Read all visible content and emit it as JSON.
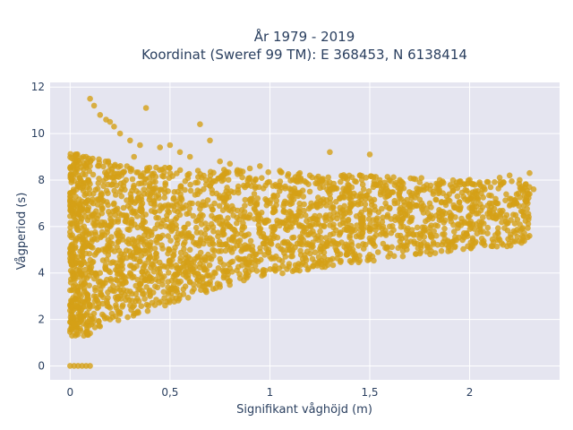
{
  "chart_data": {
    "type": "scatter",
    "title_line1": "År 1979 - 2019",
    "title_line2": "Koordinat (Sweref 99 TM): E 368453, N 6138414",
    "xlabel": "Signifikant våghöjd (m)",
    "ylabel": "Vågperiod (s)",
    "xlim": [
      -0.1,
      2.45
    ],
    "ylim": [
      -0.6,
      12.2
    ],
    "x_ticks": [
      0,
      0.5,
      1,
      1.5,
      2
    ],
    "x_tick_labels": [
      "0",
      "0,5",
      "1",
      "1,5",
      "2"
    ],
    "y_ticks": [
      0,
      2,
      4,
      6,
      8,
      10,
      12
    ],
    "y_tick_labels": [
      "0",
      "2",
      "4",
      "6",
      "8",
      "10",
      "12"
    ],
    "marker_color": "#d4a017",
    "plot_bg": "#e5e5f0",
    "grid": true,
    "points": [
      [
        0.0,
        0.0
      ],
      [
        0.02,
        0.0
      ],
      [
        0.04,
        0.0
      ],
      [
        0.06,
        0.0
      ],
      [
        0.08,
        0.0
      ],
      [
        0.1,
        0.0
      ],
      [
        0.01,
        1.3
      ],
      [
        0.02,
        1.8
      ],
      [
        0.03,
        2.6
      ],
      [
        0.04,
        3.4
      ],
      [
        0.05,
        4.2
      ],
      [
        0.06,
        5.0
      ],
      [
        0.07,
        6.0
      ],
      [
        0.08,
        7.0
      ],
      [
        0.09,
        8.0
      ],
      [
        0.1,
        8.6
      ],
      [
        0.1,
        1.4
      ],
      [
        0.15,
        1.7
      ],
      [
        0.2,
        2.0
      ],
      [
        0.25,
        2.3
      ],
      [
        0.3,
        2.6
      ],
      [
        0.4,
        3.0
      ],
      [
        0.5,
        3.3
      ],
      [
        0.6,
        3.6
      ],
      [
        0.7,
        3.9
      ],
      [
        0.8,
        4.2
      ],
      [
        0.9,
        4.5
      ],
      [
        1.0,
        4.7
      ],
      [
        1.1,
        5.0
      ],
      [
        1.2,
        5.2
      ],
      [
        1.3,
        5.4
      ],
      [
        1.4,
        5.6
      ],
      [
        1.5,
        5.8
      ],
      [
        1.6,
        6.0
      ],
      [
        1.7,
        6.2
      ],
      [
        1.8,
        6.4
      ],
      [
        1.9,
        6.6
      ],
      [
        2.0,
        6.8
      ],
      [
        2.1,
        7.0
      ],
      [
        2.2,
        7.2
      ],
      [
        2.3,
        7.4
      ],
      [
        0.12,
        3.0
      ],
      [
        0.15,
        4.0
      ],
      [
        0.18,
        5.0
      ],
      [
        0.2,
        6.0
      ],
      [
        0.22,
        7.0
      ],
      [
        0.25,
        7.5
      ],
      [
        0.28,
        8.0
      ],
      [
        0.3,
        8.5
      ],
      [
        0.32,
        9.0
      ],
      [
        0.35,
        9.5
      ],
      [
        0.1,
        11.5
      ],
      [
        0.12,
        11.2
      ],
      [
        0.15,
        10.8
      ],
      [
        0.18,
        10.6
      ],
      [
        0.2,
        10.5
      ],
      [
        0.22,
        10.3
      ],
      [
        0.25,
        10.0
      ],
      [
        0.3,
        9.7
      ],
      [
        0.38,
        11.1
      ],
      [
        0.45,
        9.4
      ],
      [
        0.5,
        9.5
      ],
      [
        0.55,
        9.2
      ],
      [
        0.6,
        9.0
      ],
      [
        0.65,
        10.4
      ],
      [
        0.7,
        9.7
      ],
      [
        0.75,
        8.8
      ],
      [
        0.8,
        8.7
      ],
      [
        0.9,
        8.5
      ],
      [
        0.95,
        8.6
      ],
      [
        1.05,
        8.4
      ],
      [
        1.15,
        8.3
      ],
      [
        1.2,
        8.2
      ],
      [
        1.3,
        9.2
      ],
      [
        1.38,
        8.1
      ],
      [
        1.45,
        8.2
      ],
      [
        1.5,
        9.1
      ],
      [
        1.55,
        8.0
      ],
      [
        1.65,
        8.0
      ],
      [
        1.75,
        7.9
      ],
      [
        1.85,
        8.0
      ],
      [
        1.95,
        7.9
      ],
      [
        2.05,
        7.9
      ],
      [
        2.15,
        8.1
      ],
      [
        2.2,
        8.2
      ],
      [
        2.25,
        8.0
      ],
      [
        2.3,
        8.3
      ],
      [
        2.32,
        7.6
      ],
      [
        2.28,
        7.1
      ],
      [
        2.2,
        6.9
      ],
      [
        2.1,
        6.7
      ],
      [
        0.3,
        4.0
      ],
      [
        0.35,
        4.5
      ],
      [
        0.4,
        5.0
      ],
      [
        0.45,
        5.5
      ],
      [
        0.5,
        6.0
      ],
      [
        0.55,
        6.5
      ],
      [
        0.6,
        7.0
      ],
      [
        0.65,
        7.5
      ],
      [
        0.7,
        8.0
      ],
      [
        0.5,
        4.5
      ],
      [
        0.6,
        5.0
      ],
      [
        0.7,
        5.5
      ],
      [
        0.8,
        6.0
      ],
      [
        0.9,
        6.5
      ],
      [
        1.0,
        7.0
      ],
      [
        1.1,
        7.3
      ],
      [
        1.2,
        7.5
      ],
      [
        1.3,
        7.4
      ],
      [
        1.4,
        7.3
      ],
      [
        1.5,
        7.2
      ],
      [
        1.0,
        5.5
      ],
      [
        1.1,
        6.0
      ],
      [
        1.2,
        6.3
      ],
      [
        1.3,
        6.5
      ],
      [
        1.4,
        6.6
      ],
      [
        1.5,
        6.7
      ],
      [
        1.6,
        6.8
      ],
      [
        1.7,
        6.9
      ],
      [
        1.8,
        7.0
      ],
      [
        1.9,
        7.1
      ],
      [
        0.8,
        5.0
      ],
      [
        0.85,
        5.4
      ],
      [
        0.95,
        5.8
      ],
      [
        1.05,
        6.2
      ],
      [
        1.15,
        6.6
      ],
      [
        1.25,
        7.0
      ],
      [
        1.35,
        7.2
      ],
      [
        0.75,
        4.6
      ],
      [
        0.7,
        3.5
      ],
      [
        0.75,
        3.4
      ],
      [
        0.2,
        2.5
      ],
      [
        0.25,
        3.0
      ],
      [
        0.3,
        3.2
      ],
      [
        0.35,
        3.5
      ],
      [
        0.4,
        3.8
      ],
      [
        0.45,
        4.0
      ],
      [
        0.55,
        4.2
      ],
      [
        0.65,
        4.4
      ],
      [
        0.05,
        1.6
      ],
      [
        0.08,
        2.2
      ]
    ]
  }
}
